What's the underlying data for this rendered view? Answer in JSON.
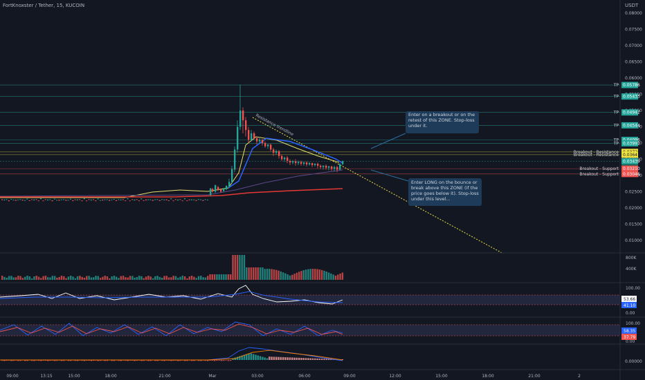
{
  "header": {
    "symbol": "FortKnoxster / Tether, 15, KUCOIN",
    "currency": "USDT"
  },
  "price_axis": {
    "ticks": [
      "0.08000",
      "0.07500",
      "0.07000",
      "0.06500",
      "0.06000",
      "0.05500",
      "0.05000",
      "0.04500",
      "0.04000",
      "0.03500",
      "0.03000",
      "0.02500",
      "0.02000",
      "0.01500",
      "0.01000"
    ],
    "tick_values": [
      0.08,
      0.075,
      0.07,
      0.065,
      0.06,
      0.055,
      0.05,
      0.045,
      0.04,
      0.035,
      0.03,
      0.025,
      0.02,
      0.015,
      0.01
    ]
  },
  "levels": [
    {
      "label": "TP",
      "price": "0.05786",
      "value": 0.05786,
      "color": "#26a69a"
    },
    {
      "label": "TP",
      "price": "0.05433",
      "value": 0.05433,
      "color": "#26a69a"
    },
    {
      "label": "TP",
      "price": "0.04942",
      "value": 0.04942,
      "color": "#26a69a"
    },
    {
      "label": "TP",
      "price": "0.04544",
      "value": 0.04544,
      "color": "#26a69a"
    },
    {
      "label": "TP",
      "price": "0.04096",
      "value": 0.04096,
      "color": "#26a69a"
    },
    {
      "label": "TP",
      "price": "0.03991",
      "value": 0.03991,
      "color": "#26a69a"
    },
    {
      "label": "Breakout - Resistance",
      "price": "0.03726",
      "value": 0.03726,
      "color": "#f0e442"
    },
    {
      "label": "Breakout - Resistance",
      "price": "0.03641",
      "value": 0.03641,
      "color": "#f0e442"
    },
    {
      "label": "",
      "price": "0.03439",
      "value": 0.03439,
      "color": "#26a69a",
      "extra": "08:24"
    },
    {
      "label": "Breakout - Support",
      "price": "0.03210",
      "value": 0.0321,
      "color": "#ef5350"
    },
    {
      "label": "Breakout - Support",
      "price": "0.03046",
      "value": 0.03046,
      "color": "#ef5350"
    }
  ],
  "annotations": {
    "trendline": "Resistance trendline",
    "note1": "Enter on a breakout or on the retest of this ZONE. Stop-loss under it.",
    "note2": "Enter LONG on the bounce or break above this ZONE (if the price goes below it). Stop-loss under this level..."
  },
  "volume": {
    "ticks": [
      "800K",
      "400K"
    ]
  },
  "rsi": {
    "ticks": [
      "100.00",
      "0.00"
    ],
    "value1": "53.66",
    "value2": "41.10",
    "color1": "#ffffff",
    "color2": "#2962ff"
  },
  "stoch": {
    "ticks": [
      "100.00",
      "0.00"
    ],
    "value1": "58.35",
    "value2": "37.79",
    "color1": "#2962ff",
    "color2": "#ef5350"
  },
  "macd": {
    "ticks": [
      "0.00000"
    ]
  },
  "time_axis": {
    "labels": [
      "09:00",
      "13:15",
      "15:00",
      "18:00",
      "21:00",
      "Mar",
      "03:00",
      "06:00",
      "09:00",
      "12:00",
      "15:00",
      "18:00",
      "21:00",
      "2"
    ]
  },
  "colors": {
    "background": "#131722",
    "up": "#26a69a",
    "down": "#ef5350",
    "support": "#ef5350",
    "resistance": "#f0e442",
    "tp": "#26a69a",
    "callout": "#1e3c5a"
  }
}
